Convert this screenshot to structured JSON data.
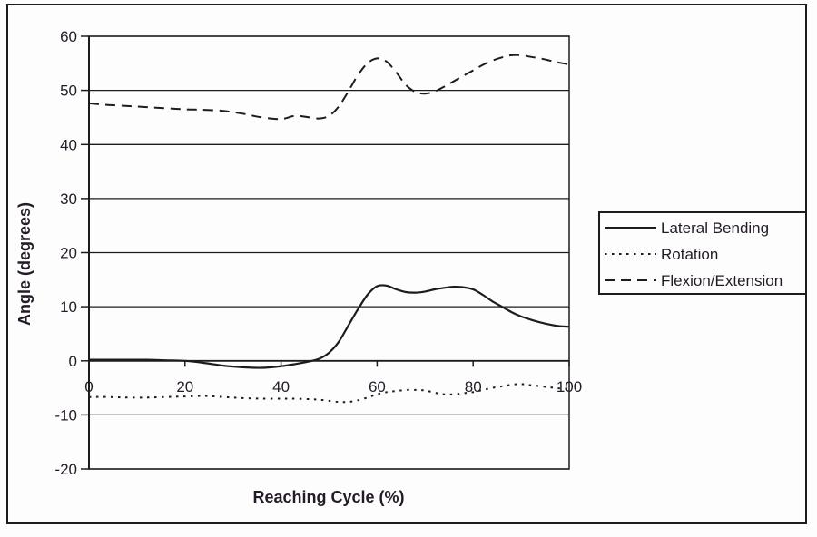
{
  "frame": {
    "background": "#fdfdfd",
    "border_color": "#1c1c1c"
  },
  "chart_data": {
    "type": "line",
    "title": "",
    "xlabel": "Reaching Cycle (%)",
    "ylabel": "Angle (degrees)",
    "xlim": [
      0,
      100
    ],
    "ylim": [
      -20,
      60
    ],
    "grid": "horizontal-major",
    "legend_position": "right-middle",
    "x_tick_labels": [
      "0",
      "20",
      "40",
      "60",
      "80",
      "100"
    ],
    "x_ticks": [
      0,
      20,
      40,
      60,
      80,
      100
    ],
    "y_tick_labels": [
      "60",
      "50",
      "40",
      "30",
      "20",
      "10",
      "0",
      "-10",
      "-20"
    ],
    "y_ticks": [
      60,
      50,
      40,
      30,
      20,
      10,
      0,
      -10,
      -20
    ],
    "x": [
      0,
      4,
      8,
      12,
      16,
      20,
      24,
      28,
      32,
      36,
      40,
      43,
      46,
      48,
      50,
      52,
      54,
      56,
      58,
      60,
      62,
      64,
      66,
      68,
      70,
      72,
      74,
      76,
      78,
      80,
      82,
      84,
      86,
      88,
      90,
      92,
      94,
      96,
      98,
      100
    ],
    "series": [
      {
        "name": "Lateral Bending",
        "style": "solid",
        "values": [
          0.2,
          0.2,
          0.2,
          0.2,
          0.1,
          0.0,
          -0.4,
          -0.9,
          -1.2,
          -1.3,
          -1.0,
          -0.6,
          -0.1,
          0.4,
          1.5,
          3.5,
          6.5,
          9.5,
          12.2,
          13.8,
          13.9,
          13.2,
          12.7,
          12.6,
          12.8,
          13.2,
          13.5,
          13.7,
          13.6,
          13.2,
          12.2,
          11.0,
          10.0,
          9.0,
          8.2,
          7.6,
          7.1,
          6.7,
          6.4,
          6.3
        ]
      },
      {
        "name": "Rotation",
        "style": "dotted",
        "values": [
          -6.7,
          -6.7,
          -6.8,
          -6.8,
          -6.7,
          -6.6,
          -6.5,
          -6.7,
          -6.9,
          -7.0,
          -7.0,
          -7.0,
          -7.1,
          -7.2,
          -7.4,
          -7.6,
          -7.6,
          -7.3,
          -6.8,
          -6.2,
          -5.8,
          -5.6,
          -5.4,
          -5.4,
          -5.5,
          -5.9,
          -6.2,
          -6.2,
          -6.0,
          -5.8,
          -5.4,
          -5.0,
          -4.7,
          -4.4,
          -4.3,
          -4.5,
          -4.7,
          -4.9,
          -5.1,
          -5.2
        ]
      },
      {
        "name": "Flexion/Extension",
        "style": "dashed",
        "values": [
          47.6,
          47.3,
          47.1,
          46.9,
          46.7,
          46.5,
          46.4,
          46.2,
          45.7,
          45.0,
          44.7,
          45.3,
          45.0,
          44.8,
          45.3,
          47.0,
          49.8,
          52.8,
          55.0,
          55.9,
          55.3,
          53.3,
          51.0,
          49.7,
          49.4,
          49.8,
          50.7,
          51.7,
          52.7,
          53.7,
          54.7,
          55.5,
          56.1,
          56.5,
          56.5,
          56.2,
          55.9,
          55.5,
          55.1,
          54.8
        ]
      }
    ],
    "colors": {
      "line": "#1c1c1c",
      "text": "#241b28"
    }
  }
}
